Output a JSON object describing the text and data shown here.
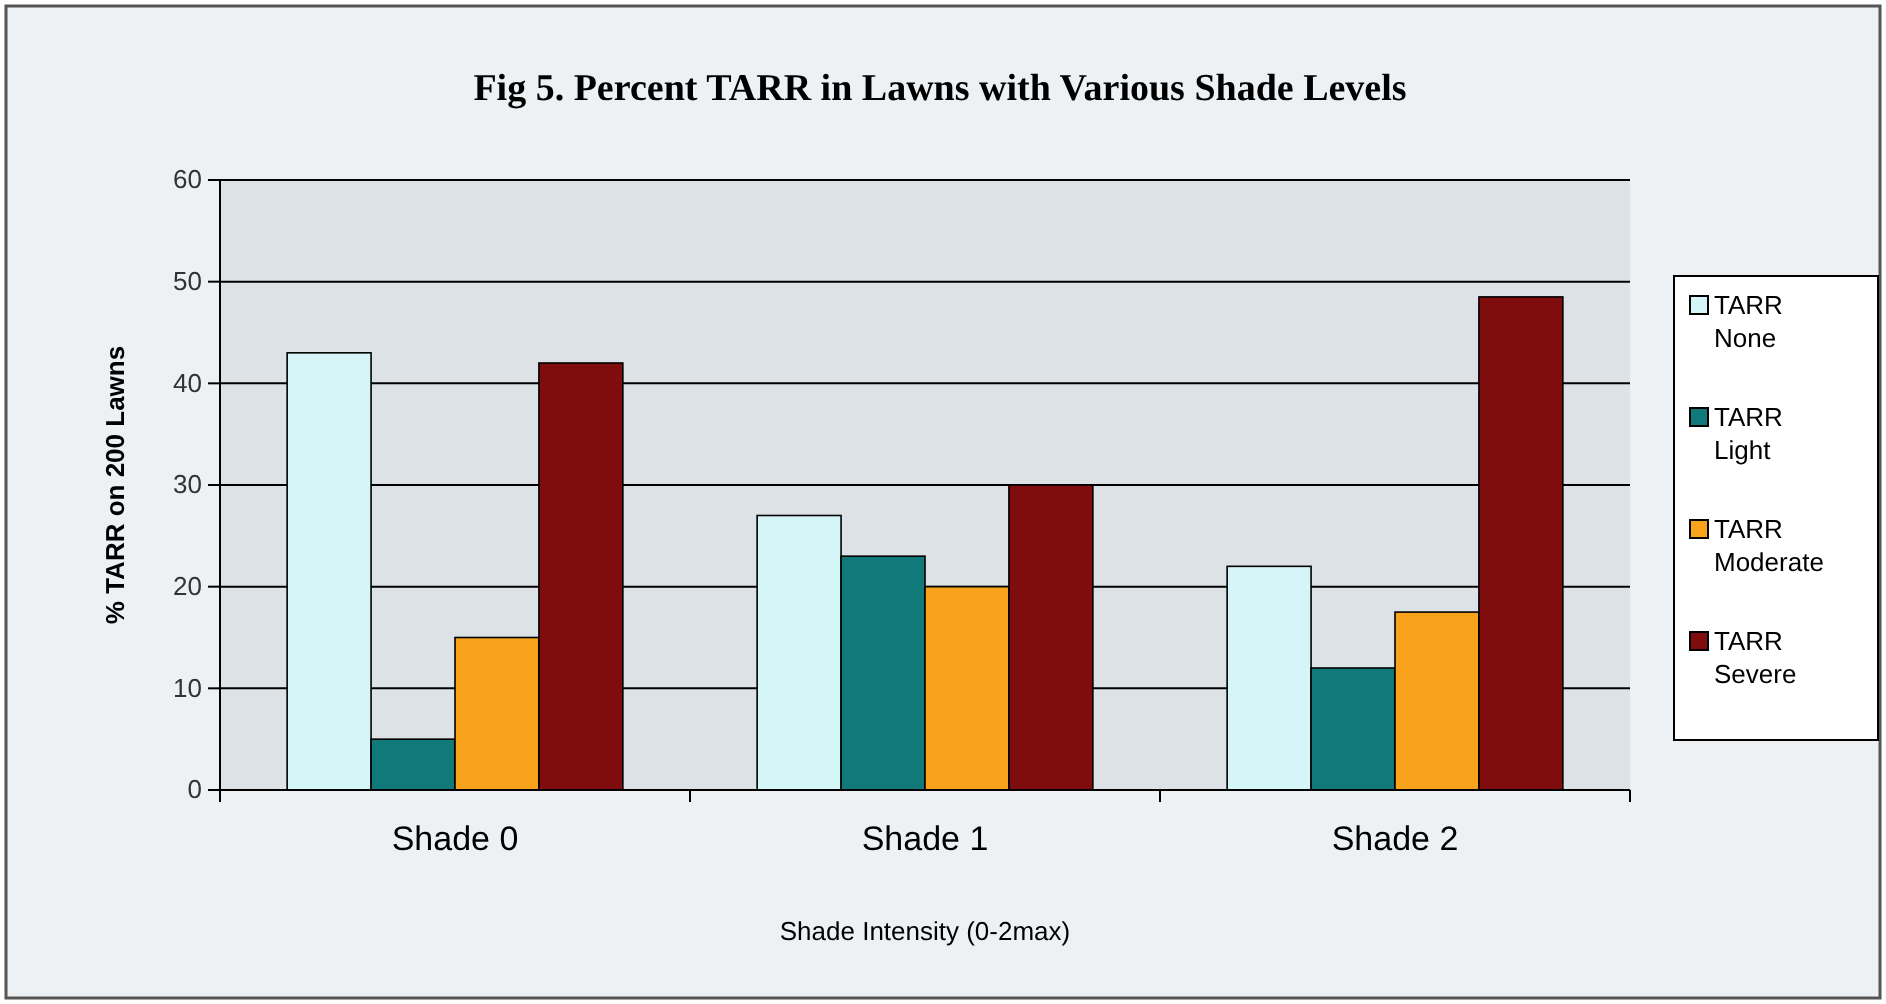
{
  "chart_data": {
    "type": "bar",
    "title": "Fig 5.  Percent TARR in Lawns with Various Shade Levels",
    "xlabel": "Shade Intensity (0-2max)",
    "ylabel": "% TARR on 200 Lawns",
    "categories": [
      "Shade 0",
      "Shade 1",
      "Shade 2"
    ],
    "series": [
      {
        "name": "TARR None",
        "color": "#d4f6f8",
        "values": [
          43,
          27,
          22
        ]
      },
      {
        "name": "TARR Light",
        "color": "#11797a",
        "values": [
          5,
          23,
          12
        ]
      },
      {
        "name": "TARR Moderate",
        "color": "#f9a21b",
        "values": [
          15,
          20,
          17.5
        ]
      },
      {
        "name": "TARR Severe",
        "color": "#7f0d0d",
        "values": [
          42,
          30,
          48.5
        ]
      }
    ],
    "ylim": [
      0,
      60
    ],
    "yticks": [
      0,
      10,
      20,
      30,
      40,
      50,
      60
    ],
    "grid": "y",
    "legend": "right"
  }
}
